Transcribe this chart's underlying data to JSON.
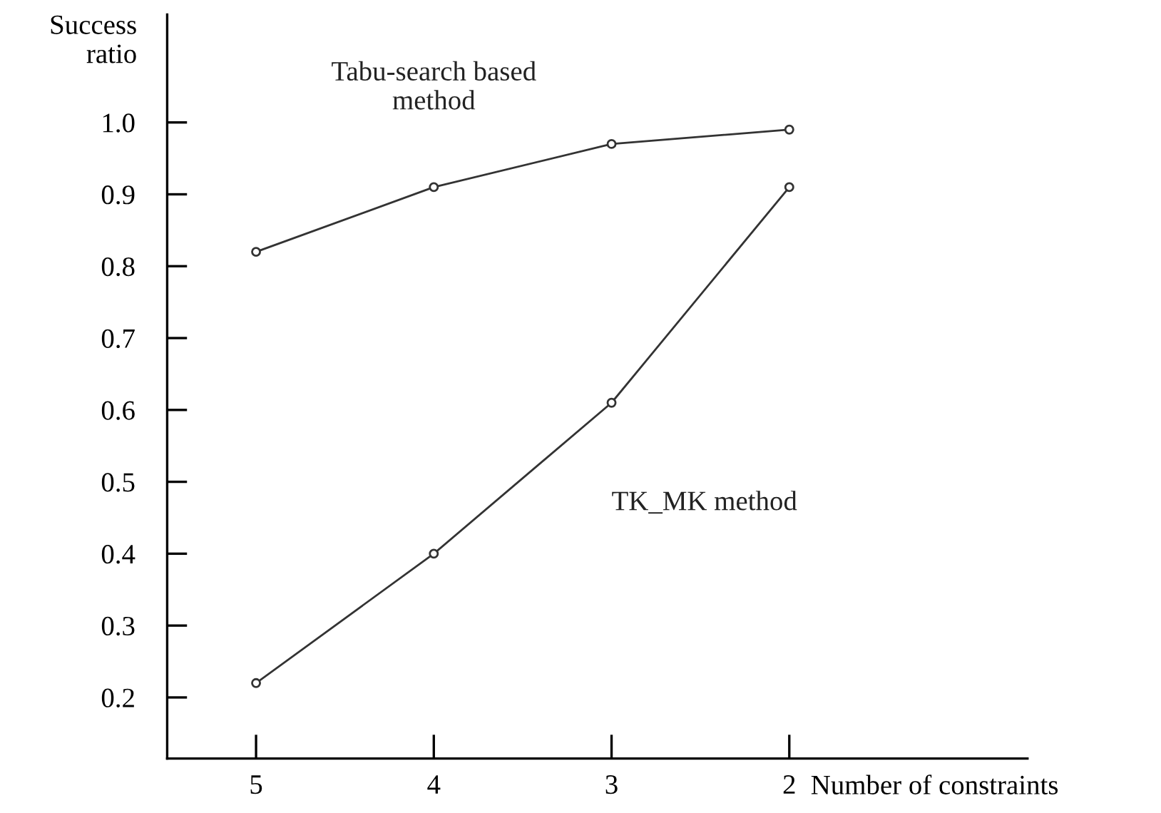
{
  "chart_data": {
    "type": "line",
    "categories": [
      "5",
      "4",
      "3",
      "2"
    ],
    "xlabel": "Number of constraints",
    "ylabel": "Success ratio",
    "series": [
      {
        "name": "Tabu-search based\nmethod",
        "color": "#333333",
        "values": [
          0.82,
          0.91,
          0.97,
          0.99
        ]
      },
      {
        "name": "TK_MK method",
        "color": "#333333",
        "values": [
          0.22,
          0.4,
          0.61,
          0.91
        ]
      }
    ],
    "ylim": [
      0.115,
      1.15
    ],
    "yticks": [
      0.2,
      0.3,
      0.4,
      0.5,
      0.6,
      0.7,
      0.8,
      0.9,
      {
        "value": 1.0,
        "label": "1.0"
      }
    ],
    "marker": "circle",
    "line_style": "solid",
    "grid": false,
    "legend": false
  }
}
